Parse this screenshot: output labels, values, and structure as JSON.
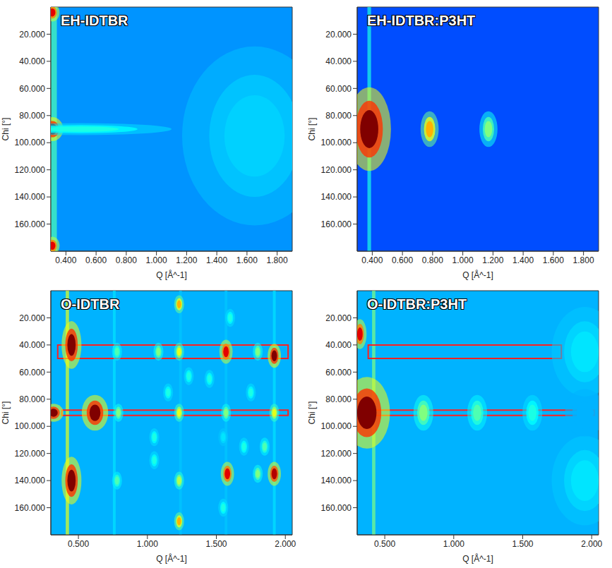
{
  "chart_data": [
    {
      "type": "heatmap",
      "title": "EH-IDTBR",
      "x_label": "Q [Å^-1]",
      "y_label": "Chi [°]",
      "xlim": [
        0.3,
        1.9
      ],
      "ylim": [
        0,
        180
      ],
      "xticks": [
        {
          "value": 0.4,
          "label": "0.400"
        },
        {
          "value": 0.6,
          "label": "0.600"
        },
        {
          "value": 0.8,
          "label": "0.800"
        },
        {
          "value": 1.0,
          "label": "1.000"
        },
        {
          "value": 1.2,
          "label": "1.200"
        },
        {
          "value": 1.4,
          "label": "1.400"
        },
        {
          "value": 1.6,
          "label": "1.600"
        },
        {
          "value": 1.8,
          "label": "1.800"
        }
      ],
      "yticks": [
        {
          "value": 20,
          "label": "20.000"
        },
        {
          "value": 40,
          "label": "40.000"
        },
        {
          "value": 60,
          "label": "60.000"
        },
        {
          "value": 80,
          "label": "80.000"
        },
        {
          "value": 100,
          "label": "100.000"
        },
        {
          "value": 120,
          "label": "120.000"
        },
        {
          "value": 140,
          "label": "140.000"
        },
        {
          "value": 160,
          "label": "160.000"
        }
      ],
      "rings": [
        {
          "q": 0.32,
          "width": 0.02,
          "intensity": 0.45
        }
      ],
      "spots": [
        {
          "x": 0.31,
          "y": 90,
          "intensity": 1.0,
          "dx": 0.03,
          "dy": 4
        },
        {
          "x": 0.5,
          "y": 90,
          "intensity": 0.4,
          "dx": 0.25,
          "dy": 2
        },
        {
          "x": 0.31,
          "y": 4,
          "intensity": 0.9,
          "dx": 0.02,
          "dy": 3
        },
        {
          "x": 0.31,
          "y": 176,
          "intensity": 0.9,
          "dx": 0.02,
          "dy": 3
        },
        {
          "x": 1.65,
          "y": 95,
          "intensity": 0.33,
          "dx": 0.2,
          "dy": 30
        }
      ],
      "boxes": []
    },
    {
      "type": "heatmap",
      "title": "EH-IDTBR:P3HT",
      "x_label": "Q [Å^-1]",
      "y_label": "Chi [°]",
      "xlim": [
        0.3,
        1.9
      ],
      "ylim": [
        0,
        180
      ],
      "xticks": [
        {
          "value": 0.4,
          "label": "0.400"
        },
        {
          "value": 0.6,
          "label": "0.600"
        },
        {
          "value": 0.8,
          "label": "0.800"
        },
        {
          "value": 1.0,
          "label": "1.000"
        },
        {
          "value": 1.2,
          "label": "1.200"
        },
        {
          "value": 1.4,
          "label": "1.400"
        },
        {
          "value": 1.6,
          "label": "1.600"
        },
        {
          "value": 1.8,
          "label": "1.800"
        }
      ],
      "yticks": [
        {
          "value": 20,
          "label": "20.000"
        },
        {
          "value": 40,
          "label": "40.000"
        },
        {
          "value": 60,
          "label": "60.000"
        },
        {
          "value": 80,
          "label": "80.000"
        },
        {
          "value": 100,
          "label": "100.000"
        },
        {
          "value": 120,
          "label": "120.000"
        },
        {
          "value": 140,
          "label": "140.000"
        },
        {
          "value": 160,
          "label": "160.000"
        }
      ],
      "rings": [
        {
          "q": 0.38,
          "width": 0.012,
          "intensity": 0.4
        }
      ],
      "spots": [
        {
          "x": 0.38,
          "y": 90,
          "intensity": 1.0,
          "dx": 0.06,
          "dy": 14
        },
        {
          "x": 0.78,
          "y": 90,
          "intensity": 0.7,
          "dx": 0.025,
          "dy": 6
        },
        {
          "x": 1.17,
          "y": 90,
          "intensity": 0.5,
          "dx": 0.025,
          "dy": 6
        }
      ],
      "boxes": []
    },
    {
      "type": "heatmap",
      "title": "O-IDTBR",
      "x_label": "Q [Å^-1]",
      "y_label": "Chi [°]",
      "xlim": [
        0.3,
        2.05
      ],
      "ylim": [
        0,
        180
      ],
      "xticks": [
        {
          "value": 0.5,
          "label": "0.500"
        },
        {
          "value": 1.0,
          "label": "1.000"
        },
        {
          "value": 1.5,
          "label": "1.500"
        },
        {
          "value": 2.0,
          "label": "2.000"
        }
      ],
      "yticks": [
        {
          "value": 20,
          "label": "20.000"
        },
        {
          "value": 40,
          "label": "40.000"
        },
        {
          "value": 60,
          "label": "60.000"
        },
        {
          "value": 80,
          "label": "80.000"
        },
        {
          "value": 100,
          "label": "100.000"
        },
        {
          "value": 120,
          "label": "120.000"
        },
        {
          "value": 140,
          "label": "140.000"
        },
        {
          "value": 160,
          "label": "160.000"
        }
      ],
      "rings": [
        {
          "q": 0.42,
          "width": 0.012,
          "intensity": 0.6
        },
        {
          "q": 0.76,
          "width": 0.01,
          "intensity": 0.35
        },
        {
          "q": 1.24,
          "width": 0.01,
          "intensity": 0.32
        },
        {
          "q": 1.57,
          "width": 0.01,
          "intensity": 0.32
        },
        {
          "q": 1.92,
          "width": 0.01,
          "intensity": 0.35
        }
      ],
      "spots": [
        {
          "x": 0.45,
          "y": 40,
          "intensity": 1.0,
          "dx": 0.03,
          "dy": 8
        },
        {
          "x": 0.45,
          "y": 140,
          "intensity": 1.0,
          "dx": 0.03,
          "dy": 8
        },
        {
          "x": 0.62,
          "y": 90,
          "intensity": 1.0,
          "dx": 0.04,
          "dy": 6
        },
        {
          "x": 0.32,
          "y": 90,
          "intensity": 1.0,
          "dx": 0.03,
          "dy": 3
        },
        {
          "x": 0.78,
          "y": 45,
          "intensity": 0.45,
          "dx": 0.015,
          "dy": 3
        },
        {
          "x": 0.79,
          "y": 90,
          "intensity": 0.5,
          "dx": 0.015,
          "dy": 3
        },
        {
          "x": 0.78,
          "y": 140,
          "intensity": 0.45,
          "dx": 0.015,
          "dy": 3
        },
        {
          "x": 1.08,
          "y": 45,
          "intensity": 0.5,
          "dx": 0.015,
          "dy": 3
        },
        {
          "x": 1.23,
          "y": 10,
          "intensity": 0.7,
          "dx": 0.015,
          "dy": 3
        },
        {
          "x": 1.23,
          "y": 45,
          "intensity": 0.6,
          "dx": 0.015,
          "dy": 3
        },
        {
          "x": 1.23,
          "y": 90,
          "intensity": 0.6,
          "dx": 0.015,
          "dy": 3
        },
        {
          "x": 1.23,
          "y": 140,
          "intensity": 0.55,
          "dx": 0.015,
          "dy": 3
        },
        {
          "x": 1.23,
          "y": 170,
          "intensity": 0.7,
          "dx": 0.015,
          "dy": 3
        },
        {
          "x": 1.05,
          "y": 125,
          "intensity": 0.4,
          "dx": 0.015,
          "dy": 3
        },
        {
          "x": 1.15,
          "y": 75,
          "intensity": 0.4,
          "dx": 0.015,
          "dy": 3
        },
        {
          "x": 1.05,
          "y": 108,
          "intensity": 0.4,
          "dx": 0.015,
          "dy": 3
        },
        {
          "x": 1.3,
          "y": 63,
          "intensity": 0.4,
          "dx": 0.015,
          "dy": 3
        },
        {
          "x": 1.45,
          "y": 65,
          "intensity": 0.4,
          "dx": 0.015,
          "dy": 3
        },
        {
          "x": 1.57,
          "y": 45,
          "intensity": 0.9,
          "dx": 0.02,
          "dy": 4
        },
        {
          "x": 1.57,
          "y": 90,
          "intensity": 0.5,
          "dx": 0.015,
          "dy": 3
        },
        {
          "x": 1.58,
          "y": 135,
          "intensity": 0.9,
          "dx": 0.02,
          "dy": 4
        },
        {
          "x": 1.55,
          "y": 108,
          "intensity": 0.35,
          "dx": 0.015,
          "dy": 3
        },
        {
          "x": 1.8,
          "y": 45,
          "intensity": 0.5,
          "dx": 0.015,
          "dy": 3
        },
        {
          "x": 1.92,
          "y": 48,
          "intensity": 1.0,
          "dx": 0.02,
          "dy": 4
        },
        {
          "x": 1.92,
          "y": 135,
          "intensity": 0.95,
          "dx": 0.02,
          "dy": 4
        },
        {
          "x": 1.8,
          "y": 135,
          "intensity": 0.5,
          "dx": 0.015,
          "dy": 3
        },
        {
          "x": 1.92,
          "y": 90,
          "intensity": 0.6,
          "dx": 0.015,
          "dy": 3
        },
        {
          "x": 1.75,
          "y": 75,
          "intensity": 0.4,
          "dx": 0.015,
          "dy": 3
        },
        {
          "x": 1.7,
          "y": 115,
          "intensity": 0.4,
          "dx": 0.015,
          "dy": 3
        },
        {
          "x": 1.6,
          "y": 20,
          "intensity": 0.4,
          "dx": 0.015,
          "dy": 3
        },
        {
          "x": 1.55,
          "y": 160,
          "intensity": 0.4,
          "dx": 0.015,
          "dy": 3
        },
        {
          "x": 1.85,
          "y": 115,
          "intensity": 0.45,
          "dx": 0.015,
          "dy": 3
        }
      ],
      "boxes": [
        {
          "x": [
            0.35,
            2.02
          ],
          "y": [
            40,
            50
          ]
        },
        {
          "x": [
            0.38,
            2.02
          ],
          "y": [
            88,
            92
          ]
        }
      ]
    },
    {
      "type": "heatmap",
      "title": "O-IDTBR:P3HT",
      "x_label": "Q [Å^-1]",
      "y_label": "Chi [°]",
      "xlim": [
        0.3,
        2.05
      ],
      "ylim": [
        0,
        180
      ],
      "xticks": [
        {
          "value": 0.5,
          "label": "0.500"
        },
        {
          "value": 1.0,
          "label": "1.000"
        },
        {
          "value": 1.5,
          "label": "1.500"
        },
        {
          "value": 2.0,
          "label": "2.000"
        }
      ],
      "yticks": [
        {
          "value": 20,
          "label": "20.000"
        },
        {
          "value": 40,
          "label": "40.000"
        },
        {
          "value": 60,
          "label": "60.000"
        },
        {
          "value": 80,
          "label": "80.000"
        },
        {
          "value": 100,
          "label": "100.000"
        },
        {
          "value": 120,
          "label": "120.000"
        },
        {
          "value": 140,
          "label": "140.000"
        },
        {
          "value": 160,
          "label": "160.000"
        }
      ],
      "rings": [
        {
          "q": 0.42,
          "width": 0.012,
          "intensity": 0.5
        }
      ],
      "spots": [
        {
          "x": 0.37,
          "y": 90,
          "intensity": 1.0,
          "dx": 0.07,
          "dy": 12
        },
        {
          "x": 0.32,
          "y": 32,
          "intensity": 0.9,
          "dx": 0.02,
          "dy": 5
        },
        {
          "x": 0.78,
          "y": 90,
          "intensity": 0.5,
          "dx": 0.03,
          "dy": 6
        },
        {
          "x": 1.17,
          "y": 90,
          "intensity": 0.45,
          "dx": 0.03,
          "dy": 6
        },
        {
          "x": 1.57,
          "y": 90,
          "intensity": 0.4,
          "dx": 0.03,
          "dy": 6
        },
        {
          "x": 1.95,
          "y": 45,
          "intensity": 0.35,
          "dx": 0.1,
          "dy": 15
        },
        {
          "x": 1.95,
          "y": 140,
          "intensity": 0.35,
          "dx": 0.1,
          "dy": 15
        },
        {
          "x": 1.95,
          "y": 90,
          "intensity": 0.3,
          "dx": 0.06,
          "dy": 8
        }
      ],
      "boxes": [
        {
          "x": [
            0.38,
            1.78
          ],
          "y": [
            40,
            50
          ]
        },
        {
          "x": [
            0.38,
            2.02
          ],
          "y": [
            88,
            92
          ]
        }
      ]
    }
  ]
}
